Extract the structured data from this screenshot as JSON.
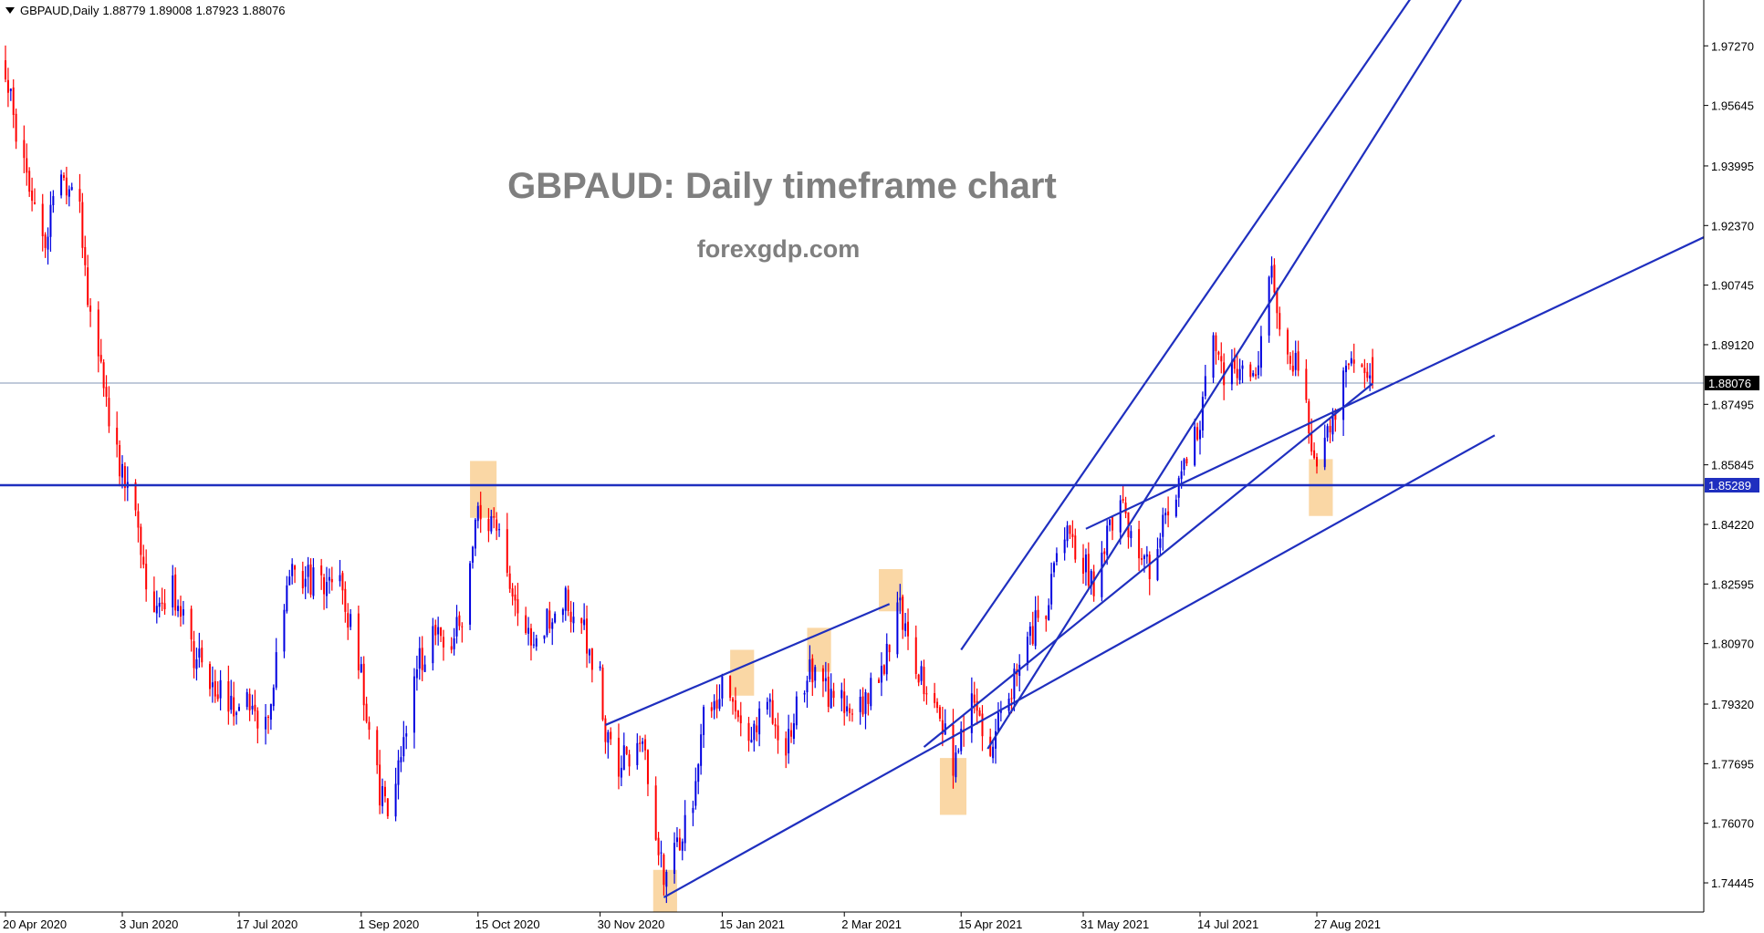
{
  "header": {
    "symbol": "GBPAUD,Daily",
    "open": "1.88779",
    "high": "1.89008",
    "low": "1.87923",
    "close": "1.88076"
  },
  "overlay": {
    "title": "GBPAUD: Daily timeframe chart",
    "subtitle": "forexgdp.com"
  },
  "colors": {
    "bull": "#0000e0",
    "bear": "#ff0000",
    "trendline": "#1f2fbf",
    "highlight": "#fad7a5",
    "current_price_line": "#8096b4",
    "level_line": "#1f2fbf",
    "current_price_badge": "#000000",
    "level_badge": "#1f2fbf",
    "title_text": "#7f7f7f"
  },
  "chart_data": {
    "type": "candlestick",
    "title": "GBPAUD: Daily timeframe chart",
    "y_ticks": [
      "1.97270",
      "1.95645",
      "1.93995",
      "1.92370",
      "1.90745",
      "1.89120",
      "1.87495",
      "1.85845",
      "1.84220",
      "1.82595",
      "1.80970",
      "1.79320",
      "1.77695",
      "1.76070",
      "1.74445"
    ],
    "y_range": [
      1.7365,
      1.9852
    ],
    "x_ticks": [
      "20 Apr 2020",
      "3 Jun 2020",
      "17 Jul 2020",
      "1 Sep 2020",
      "15 Oct 2020",
      "30 Nov 2020",
      "15 Jan 2021",
      "2 Mar 2021",
      "15 Apr 2021",
      "31 May 2021",
      "14 Jul 2021",
      "27 Aug 2021"
    ],
    "current_price": "1.88076",
    "horizontal_level": "1.85289",
    "path": [
      [
        "20 Apr 2020",
        1.965
      ],
      [
        "27 Apr 2020",
        1.94
      ],
      [
        "4 May 2020",
        1.918
      ],
      [
        "11 May 2020",
        1.938
      ],
      [
        "18 May 2020",
        1.928
      ],
      [
        "22 May 2020",
        1.898
      ],
      [
        "26 May 2020",
        1.888
      ],
      [
        "29 May 2020",
        1.872
      ],
      [
        "3 Jun 2020",
        1.855
      ],
      [
        "9 Jun 2020",
        1.84
      ],
      [
        "15 Jun 2020",
        1.815
      ],
      [
        "22 Jun 2020",
        1.825
      ],
      [
        "29 Jun 2020",
        1.808
      ],
      [
        "6 Jul 2020",
        1.8
      ],
      [
        "13 Jul 2020",
        1.795
      ],
      [
        "17 Jul 2020",
        1.792
      ],
      [
        "21 Jul 2020",
        1.793
      ],
      [
        "24 Jul 2020",
        1.785
      ],
      [
        "28 Jul 2020",
        1.792
      ],
      [
        "31 Jul 2020",
        1.805
      ],
      [
        "4 Aug 2020",
        1.828
      ],
      [
        "10 Aug 2020",
        1.828
      ],
      [
        "17 Aug 2020",
        1.826
      ],
      [
        "24 Aug 2020",
        1.827
      ],
      [
        "28 Aug 2020",
        1.815
      ],
      [
        "1 Sep 2020",
        1.8
      ],
      [
        "5 Sep 2020",
        1.778
      ],
      [
        "10 Sep 2020",
        1.764
      ],
      [
        "14 Sep 2020",
        1.77
      ],
      [
        "18 Sep 2020",
        1.785
      ],
      [
        "23 Sep 2020",
        1.805
      ],
      [
        "29 Sep 2020",
        1.813
      ],
      [
        "5 Oct 2020",
        1.812
      ],
      [
        "9 Oct 2020",
        1.818
      ],
      [
        "15 Oct 2020",
        1.846
      ],
      [
        "19 Oct 2020",
        1.843
      ],
      [
        "23 Oct 2020",
        1.838
      ],
      [
        "27 Oct 2020",
        1.823
      ],
      [
        "2 Nov 2020",
        1.81
      ],
      [
        "9 Nov 2020",
        1.815
      ],
      [
        "16 Nov 2020",
        1.822
      ],
      [
        "23 Nov 2020",
        1.816
      ],
      [
        "27 Nov 2020",
        1.805
      ],
      [
        "30 Nov 2020",
        1.8
      ],
      [
        "2 Dec 2020",
        1.783
      ],
      [
        "7 Dec 2020",
        1.776
      ],
      [
        "11 Dec 2020",
        1.78
      ],
      [
        "16 Dec 2020",
        1.785
      ],
      [
        "21 Dec 2020",
        1.758
      ],
      [
        "24 Dec 2020",
        1.747
      ],
      [
        "29 Dec 2020",
        1.755
      ],
      [
        "4 Jan 2021",
        1.765
      ],
      [
        "8 Jan 2021",
        1.79
      ],
      [
        "15 Jan 2021",
        1.798
      ],
      [
        "19 Jan 2021",
        1.792
      ],
      [
        "26 Jan 2021",
        1.786
      ],
      [
        "2 Feb 2021",
        1.792
      ],
      [
        "8 Feb 2021",
        1.782
      ],
      [
        "12 Feb 2021",
        1.794
      ],
      [
        "18 Feb 2021",
        1.803
      ],
      [
        "24 Feb 2021",
        1.796
      ],
      [
        "2 Mar 2021",
        1.795
      ],
      [
        "8 Mar 2021",
        1.792
      ],
      [
        "15 Mar 2021",
        1.8
      ],
      [
        "19 Mar 2021",
        1.808
      ],
      [
        "22 Mar 2021",
        1.82
      ],
      [
        "26 Mar 2021",
        1.812
      ],
      [
        "31 Mar 2021",
        1.8
      ],
      [
        "6 Apr 2021",
        1.795
      ],
      [
        "12 Apr 2021",
        1.776
      ],
      [
        "15 Apr 2021",
        1.785
      ],
      [
        "19 Apr 2021",
        1.793
      ],
      [
        "23 Apr 2021",
        1.787
      ],
      [
        "27 Apr 2021",
        1.782
      ],
      [
        "30 Apr 2021",
        1.792
      ],
      [
        "5 May 2021",
        1.8
      ],
      [
        "11 May 2021",
        1.812
      ],
      [
        "17 May 2021",
        1.82
      ],
      [
        "21 May 2021",
        1.832
      ],
      [
        "25 May 2021",
        1.838
      ],
      [
        "31 May 2021",
        1.831
      ],
      [
        "4 Jun 2021",
        1.826
      ],
      [
        "9 Jun 2021",
        1.838
      ],
      [
        "15 Jun 2021",
        1.846
      ],
      [
        "21 Jun 2021",
        1.834
      ],
      [
        "25 Jun 2021",
        1.83
      ],
      [
        "30 Jun 2021",
        1.843
      ],
      [
        "6 Jul 2021",
        1.854
      ],
      [
        "10 Jul 2021",
        1.86
      ],
      [
        "14 Jul 2021",
        1.872
      ],
      [
        "19 Jul 2021",
        1.89
      ],
      [
        "23 Jul 2021",
        1.882
      ],
      [
        "29 Jul 2021",
        1.885
      ],
      [
        "2 Aug 2021",
        1.88
      ],
      [
        "6 Aug 2021",
        1.893
      ],
      [
        "10 Aug 2021",
        1.91
      ],
      [
        "14 Aug 2021",
        1.893
      ],
      [
        "19 Aug 2021",
        1.885
      ],
      [
        "23 Aug 2021",
        1.873
      ],
      [
        "27 Aug 2021",
        1.857
      ],
      [
        "31 Aug 2021",
        1.868
      ],
      [
        "4 Sep 2021",
        1.876
      ],
      [
        "8 Sep 2021",
        1.885
      ],
      [
        "13 Sep 2021",
        1.889
      ],
      [
        "17 Sep 2021",
        1.8808
      ]
    ],
    "trendlines": [
      [
        [
          "2 Dec 2020",
          1.7875
        ],
        [
          "19 Mar 2021",
          1.8205
        ]
      ],
      [
        [
          "24 Dec 2020",
          1.7405
        ],
        [
          "2 Nov 2021",
          1.8665
        ]
      ],
      [
        [
          "25 Apr 2021",
          1.781
        ],
        [
          "26 Oct 2021",
          1.9918
        ]
      ],
      [
        [
          "15 Apr 2021",
          1.808
        ],
        [
          "18 Oct 2021",
          2.0031
        ]
      ],
      [
        [
          "1 Jun 2021",
          1.841
        ],
        [
          "30 Jan 2022",
          1.924
        ]
      ],
      [
        [
          "1 Apr 2021",
          1.7815
        ],
        [
          "17 Sep 2021",
          1.8806
        ]
      ]
    ],
    "highlight_zones": [
      {
        "from": "12 Oct 2020",
        "to": "22 Oct 2020",
        "low": 1.844,
        "high": 1.8595
      },
      {
        "from": "20 Dec 2020",
        "to": "29 Dec 2020",
        "low": 1.7365,
        "high": 1.748
      },
      {
        "from": "18 Jan 2021",
        "to": "27 Jan 2021",
        "low": 1.7955,
        "high": 1.808
      },
      {
        "from": "16 Feb 2021",
        "to": "25 Feb 2021",
        "low": 1.802,
        "high": 1.814
      },
      {
        "from": "15 Mar 2021",
        "to": "24 Mar 2021",
        "low": 1.8185,
        "high": 1.83
      },
      {
        "from": "7 Apr 2021",
        "to": "17 Apr 2021",
        "low": 1.763,
        "high": 1.7785
      },
      {
        "from": "24 Aug 2021",
        "to": "2 Sep 2021",
        "low": 1.8445,
        "high": 1.86
      }
    ]
  }
}
